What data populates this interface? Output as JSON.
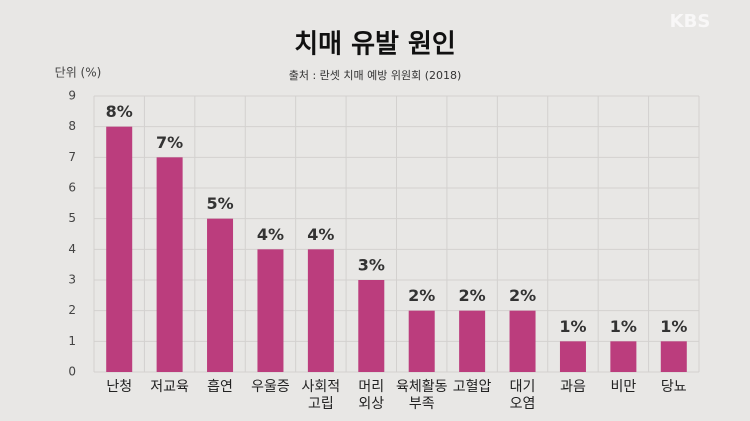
{
  "chart_data": {
    "type": "bar",
    "title": "치매 유발 원인",
    "subtitle": "출처 : 란셋 치매 예방 위원회 (2018)",
    "watermark": "KBS",
    "y_label": "단위 (%)",
    "categories": [
      "난청",
      "저교육",
      "흡연",
      "우울증",
      "사회적\n고립",
      "머리\n외상",
      "육체활동\n부족",
      "고혈압",
      "대기\n오염",
      "과음",
      "비만",
      "당뇨"
    ],
    "values": [
      8,
      7,
      5,
      4,
      4,
      3,
      2,
      2,
      2,
      1,
      1,
      1
    ],
    "value_labels": [
      "8%",
      "7%",
      "5%",
      "4%",
      "4%",
      "3%",
      "2%",
      "2%",
      "2%",
      "1%",
      "1%",
      "1%"
    ],
    "color": "#bb3d7d",
    "ylim": [
      0,
      9
    ],
    "yticks": [
      0,
      1,
      2,
      3,
      4,
      5,
      6,
      7,
      8,
      9
    ],
    "grid": true
  }
}
